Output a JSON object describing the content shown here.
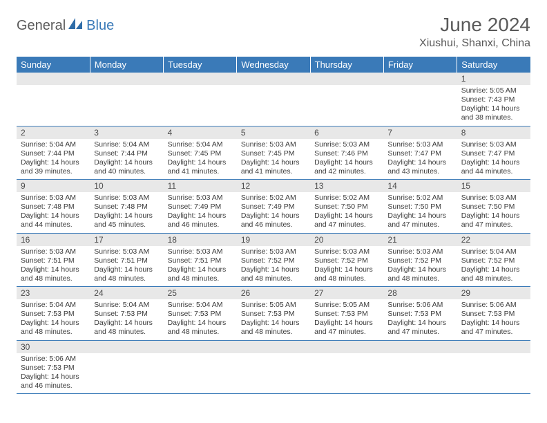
{
  "logo": {
    "text1": "General",
    "text2": "Blue"
  },
  "title": "June 2024",
  "location": "Xiushui, Shanxi, China",
  "colors": {
    "header_bg": "#3a7ab8",
    "header_text": "#ffffff",
    "daynum_bg": "#e8e8e8",
    "text": "#3a3a3a",
    "border": "#3a7ab8"
  },
  "weekdays": [
    "Sunday",
    "Monday",
    "Tuesday",
    "Wednesday",
    "Thursday",
    "Friday",
    "Saturday"
  ],
  "labels": {
    "sunrise": "Sunrise:",
    "sunset": "Sunset:",
    "daylight": "Daylight:"
  },
  "weeks": [
    [
      null,
      null,
      null,
      null,
      null,
      null,
      {
        "n": "1",
        "sr": "5:05 AM",
        "ss": "7:43 PM",
        "dl": "14 hours and 38 minutes."
      }
    ],
    [
      {
        "n": "2",
        "sr": "5:04 AM",
        "ss": "7:44 PM",
        "dl": "14 hours and 39 minutes."
      },
      {
        "n": "3",
        "sr": "5:04 AM",
        "ss": "7:44 PM",
        "dl": "14 hours and 40 minutes."
      },
      {
        "n": "4",
        "sr": "5:04 AM",
        "ss": "7:45 PM",
        "dl": "14 hours and 41 minutes."
      },
      {
        "n": "5",
        "sr": "5:03 AM",
        "ss": "7:45 PM",
        "dl": "14 hours and 41 minutes."
      },
      {
        "n": "6",
        "sr": "5:03 AM",
        "ss": "7:46 PM",
        "dl": "14 hours and 42 minutes."
      },
      {
        "n": "7",
        "sr": "5:03 AM",
        "ss": "7:47 PM",
        "dl": "14 hours and 43 minutes."
      },
      {
        "n": "8",
        "sr": "5:03 AM",
        "ss": "7:47 PM",
        "dl": "14 hours and 44 minutes."
      }
    ],
    [
      {
        "n": "9",
        "sr": "5:03 AM",
        "ss": "7:48 PM",
        "dl": "14 hours and 44 minutes."
      },
      {
        "n": "10",
        "sr": "5:03 AM",
        "ss": "7:48 PM",
        "dl": "14 hours and 45 minutes."
      },
      {
        "n": "11",
        "sr": "5:03 AM",
        "ss": "7:49 PM",
        "dl": "14 hours and 46 minutes."
      },
      {
        "n": "12",
        "sr": "5:02 AM",
        "ss": "7:49 PM",
        "dl": "14 hours and 46 minutes."
      },
      {
        "n": "13",
        "sr": "5:02 AM",
        "ss": "7:50 PM",
        "dl": "14 hours and 47 minutes."
      },
      {
        "n": "14",
        "sr": "5:02 AM",
        "ss": "7:50 PM",
        "dl": "14 hours and 47 minutes."
      },
      {
        "n": "15",
        "sr": "5:03 AM",
        "ss": "7:50 PM",
        "dl": "14 hours and 47 minutes."
      }
    ],
    [
      {
        "n": "16",
        "sr": "5:03 AM",
        "ss": "7:51 PM",
        "dl": "14 hours and 48 minutes."
      },
      {
        "n": "17",
        "sr": "5:03 AM",
        "ss": "7:51 PM",
        "dl": "14 hours and 48 minutes."
      },
      {
        "n": "18",
        "sr": "5:03 AM",
        "ss": "7:51 PM",
        "dl": "14 hours and 48 minutes."
      },
      {
        "n": "19",
        "sr": "5:03 AM",
        "ss": "7:52 PM",
        "dl": "14 hours and 48 minutes."
      },
      {
        "n": "20",
        "sr": "5:03 AM",
        "ss": "7:52 PM",
        "dl": "14 hours and 48 minutes."
      },
      {
        "n": "21",
        "sr": "5:03 AM",
        "ss": "7:52 PM",
        "dl": "14 hours and 48 minutes."
      },
      {
        "n": "22",
        "sr": "5:04 AM",
        "ss": "7:52 PM",
        "dl": "14 hours and 48 minutes."
      }
    ],
    [
      {
        "n": "23",
        "sr": "5:04 AM",
        "ss": "7:53 PM",
        "dl": "14 hours and 48 minutes."
      },
      {
        "n": "24",
        "sr": "5:04 AM",
        "ss": "7:53 PM",
        "dl": "14 hours and 48 minutes."
      },
      {
        "n": "25",
        "sr": "5:04 AM",
        "ss": "7:53 PM",
        "dl": "14 hours and 48 minutes."
      },
      {
        "n": "26",
        "sr": "5:05 AM",
        "ss": "7:53 PM",
        "dl": "14 hours and 48 minutes."
      },
      {
        "n": "27",
        "sr": "5:05 AM",
        "ss": "7:53 PM",
        "dl": "14 hours and 47 minutes."
      },
      {
        "n": "28",
        "sr": "5:06 AM",
        "ss": "7:53 PM",
        "dl": "14 hours and 47 minutes."
      },
      {
        "n": "29",
        "sr": "5:06 AM",
        "ss": "7:53 PM",
        "dl": "14 hours and 47 minutes."
      }
    ],
    [
      {
        "n": "30",
        "sr": "5:06 AM",
        "ss": "7:53 PM",
        "dl": "14 hours and 46 minutes."
      },
      null,
      null,
      null,
      null,
      null,
      null
    ]
  ]
}
